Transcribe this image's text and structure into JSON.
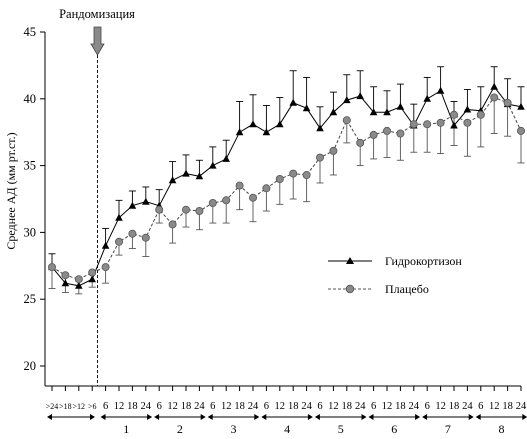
{
  "chart_data": {
    "type": "line",
    "annotation": "Рандомизация",
    "ylabel": "Среднее АД (мм рт.ст.)",
    "ylim": [
      20,
      45
    ],
    "yticks": [
      20,
      25,
      30,
      35,
      40,
      45
    ],
    "grid": false,
    "legend_position": "right",
    "x_tick_labels": [
      ">24",
      ">18",
      ">12",
      ">6",
      "6",
      "12",
      "18",
      "24",
      "6",
      "12",
      "18",
      "24",
      "6",
      "12",
      "18",
      "24",
      "6",
      "12",
      "18",
      "24",
      "6",
      "12",
      "18",
      "24",
      "6",
      "12",
      "18",
      "24",
      "6",
      "12",
      "18",
      "24",
      "6",
      "12",
      "18",
      "24"
    ],
    "day_labels": [
      "1",
      "2",
      "3",
      "4",
      "5",
      "6",
      "7",
      "8"
    ],
    "series": [
      {
        "name": "Гидрокортизон",
        "marker": "triangle",
        "line_style": "solid",
        "color": "#000000",
        "values": [
          27.4,
          26.2,
          26.0,
          26.5,
          29.0,
          31.1,
          32.0,
          32.3,
          32.0,
          33.9,
          34.4,
          34.2,
          35.0,
          35.5,
          37.5,
          38.1,
          37.5,
          38.1,
          39.7,
          39.3,
          37.8,
          39.0,
          39.9,
          40.2,
          39.0,
          39.0,
          39.4,
          38.0,
          40.0,
          40.6,
          38.0,
          39.2,
          39.1,
          40.9,
          39.6,
          39.4
        ],
        "errors": [
          1.0,
          0.7,
          0.6,
          0.6,
          1.3,
          1.3,
          1.1,
          1.1,
          1.2,
          1.4,
          1.4,
          1.2,
          1.4,
          1.4,
          2.3,
          2.2,
          2.0,
          2.0,
          2.4,
          2.3,
          1.6,
          1.5,
          1.9,
          1.9,
          1.9,
          1.6,
          1.7,
          1.6,
          1.6,
          1.8,
          1.8,
          1.5,
          1.8,
          1.5,
          1.9,
          1.5
        ]
      },
      {
        "name": "Плацебо",
        "marker": "circle",
        "line_style": "dashed",
        "color": "#888888",
        "values": [
          27.4,
          26.8,
          26.5,
          27.0,
          27.4,
          29.3,
          29.9,
          29.6,
          31.7,
          30.6,
          31.7,
          31.6,
          32.2,
          32.4,
          33.5,
          32.6,
          33.3,
          34.0,
          34.4,
          34.3,
          35.6,
          36.1,
          38.4,
          36.7,
          37.3,
          37.6,
          37.4,
          38.1,
          38.1,
          38.2,
          38.8,
          38.2,
          38.8,
          40.1,
          39.7,
          37.6
        ],
        "errors": [
          1.6,
          1.3,
          1.1,
          1.1,
          1.2,
          1.0,
          1.1,
          1.4,
          1.0,
          1.4,
          1.3,
          1.4,
          1.5,
          1.7,
          1.8,
          1.8,
          1.7,
          1.9,
          1.9,
          2.0,
          1.9,
          1.8,
          1.7,
          1.7,
          1.8,
          2.0,
          2.0,
          2.1,
          2.1,
          2.3,
          2.3,
          2.5,
          2.4,
          2.7,
          2.5,
          2.4
        ]
      }
    ]
  }
}
